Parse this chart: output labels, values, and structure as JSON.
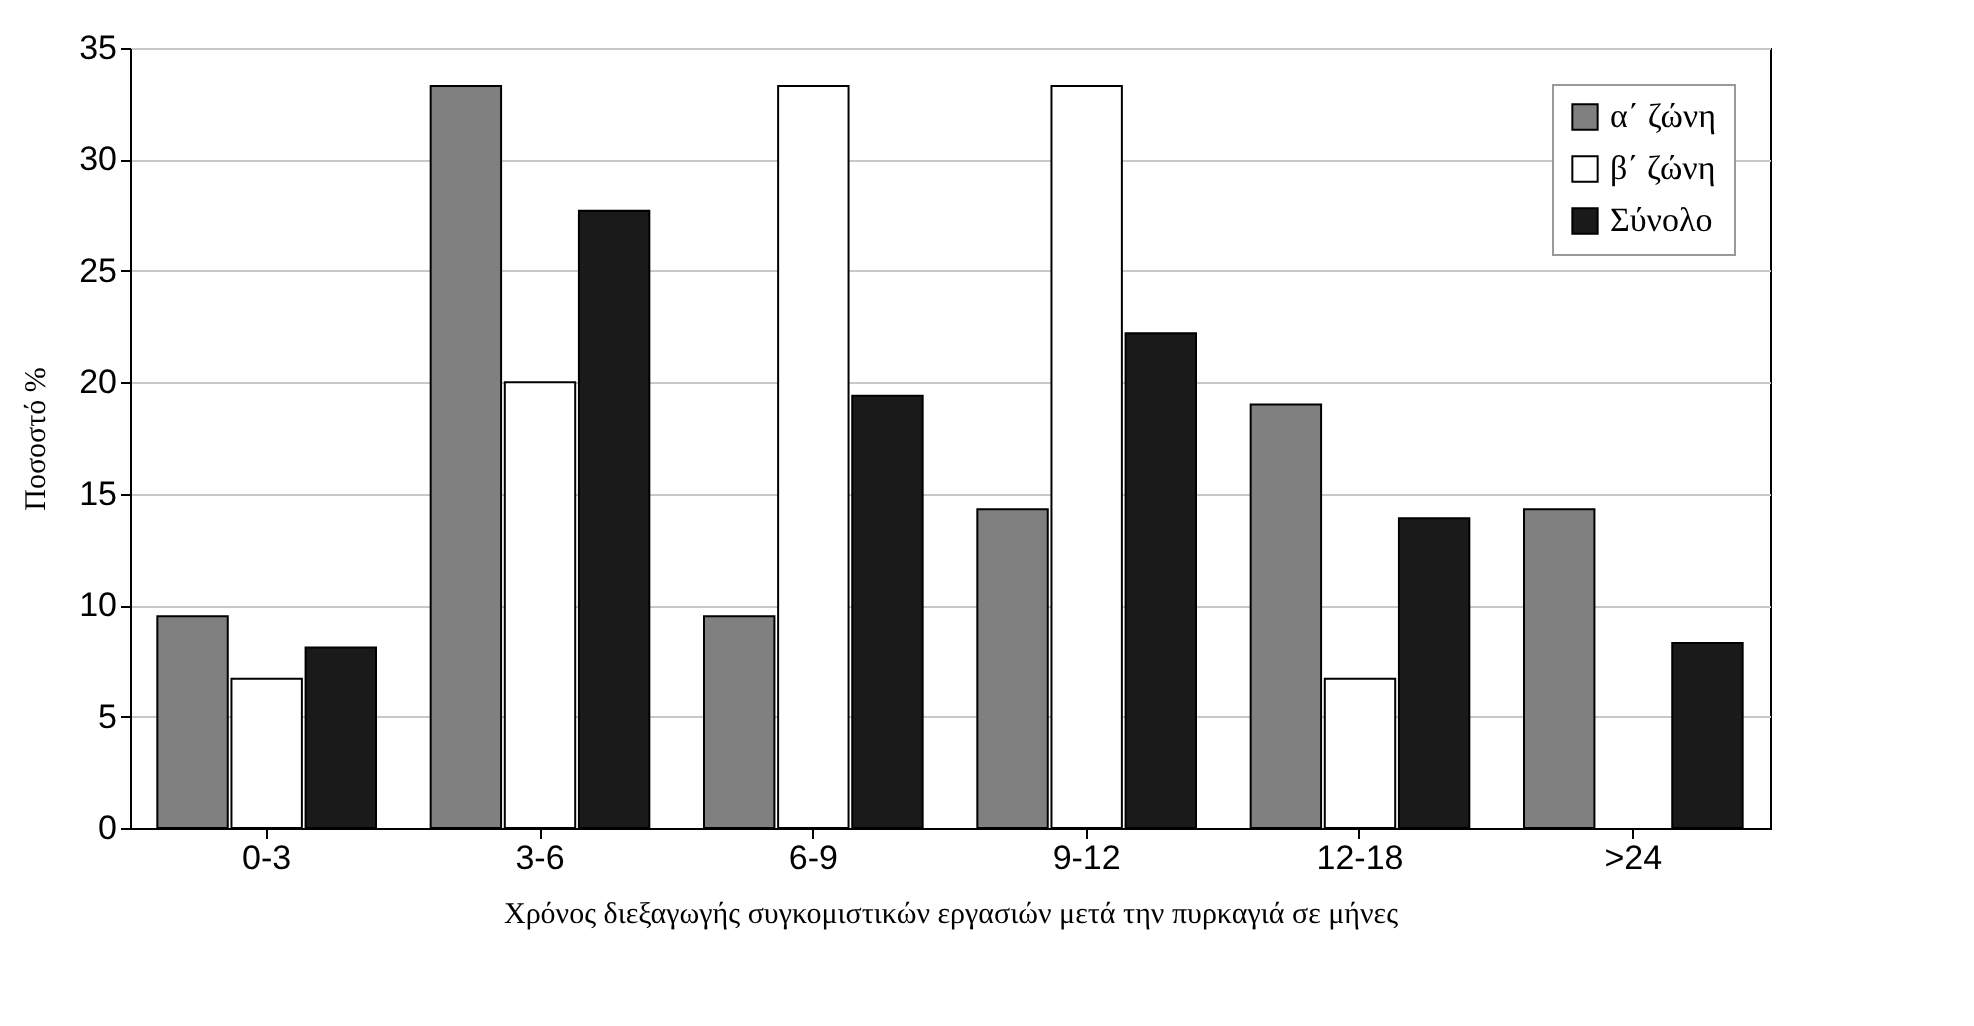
{
  "chart_data": {
    "type": "bar",
    "xlabel": "Χρόνος διεξαγωγής συγκομιστικών εργασιών μετά την πυρκαγιά σε μήνες",
    "ylabel": "Ποσοστό %",
    "categories": [
      "0-3",
      "3-6",
      "6-9",
      "9-12",
      "12-18",
      ">24"
    ],
    "series": [
      {
        "name": "α΄ ζώνη",
        "color": "#808080",
        "values": [
          9.5,
          33.3,
          9.5,
          14.3,
          19,
          14.3
        ]
      },
      {
        "name": "β΄ ζώνη",
        "color": "#ffffff",
        "values": [
          6.7,
          20,
          33.3,
          33.3,
          6.7,
          null
        ]
      },
      {
        "name": "Σύνολο",
        "color": "#1a1a1a",
        "values": [
          8.1,
          27.7,
          19.4,
          22.2,
          13.9,
          8.3
        ]
      }
    ],
    "ylim": [
      0,
      35
    ],
    "yticks": [
      0,
      5,
      10,
      15,
      20,
      25,
      30,
      35
    ],
    "grid": "y",
    "legend": "top right"
  }
}
